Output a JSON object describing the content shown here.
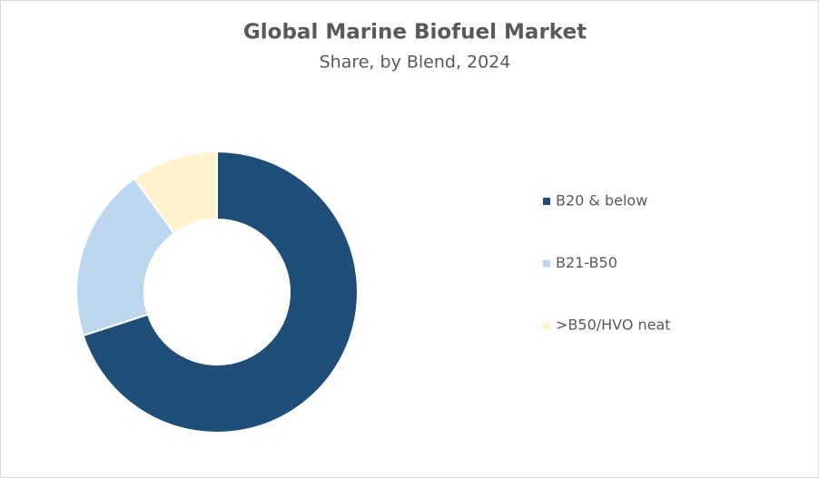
{
  "chart_data": {
    "type": "donut",
    "title": "Global Marine Biofuel Market",
    "subtitle": "Share, by Blend, 2024",
    "categories": [
      "B20 & below",
      "B21-B50",
      ">B50/HVO neat"
    ],
    "values": [
      70,
      20,
      10
    ],
    "colors": [
      "#1f4e79",
      "#bdd7ee",
      "#fff2cc"
    ],
    "legend": "right"
  }
}
